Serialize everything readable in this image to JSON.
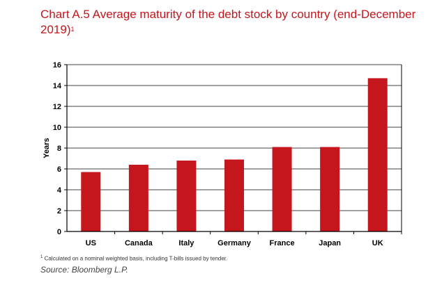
{
  "chart_data": {
    "type": "bar",
    "title": "Chart A.5 Average maturity of the debt stock by country (end-December 2019)",
    "title_note_marker": "1",
    "xlabel": "",
    "ylabel": "Years",
    "categories": [
      "US",
      "Canada",
      "Italy",
      "Germany",
      "France",
      "Japan",
      "UK"
    ],
    "values": [
      5.7,
      6.4,
      6.8,
      6.9,
      8.1,
      8.1,
      14.7
    ],
    "ylim": [
      0,
      16
    ],
    "yticks": [
      0,
      2,
      4,
      6,
      8,
      10,
      12,
      14,
      16
    ],
    "grid": true,
    "bar_color": "#c4161c",
    "legend": "none"
  },
  "footnote": {
    "marker": "1",
    "text": "Calculated on a nominal weighted basis, including T-bills issued by tender."
  },
  "source": "Source:  Bloomberg L.P.",
  "colors": {
    "title": "#c4161c",
    "bar": "#c4161c",
    "axis": "#000000",
    "grid": "#000000"
  }
}
